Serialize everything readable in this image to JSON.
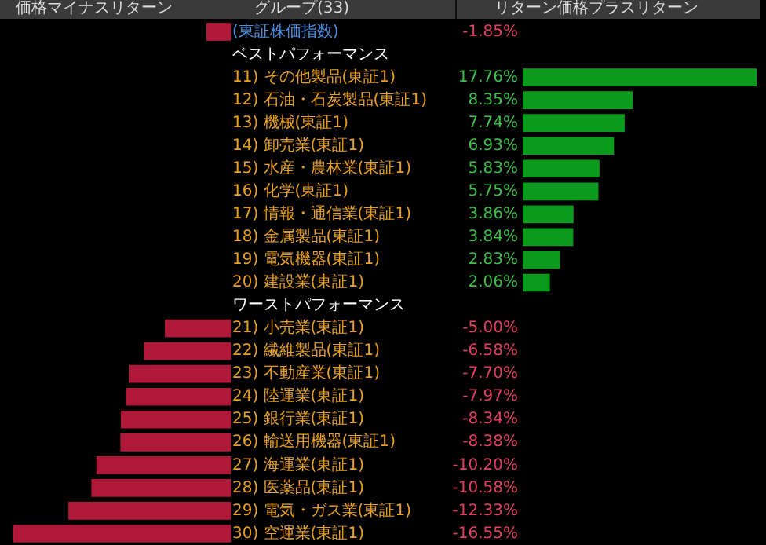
{
  "chart_data": [
    {
      "type": "bar",
      "orientation": "horizontal",
      "title": "価格マイナスリターン",
      "annotations": [
        "グループ(33)"
      ],
      "categories": [
        "(東証株価指数)",
        "ベストパフォーマンス",
        "11) その他製品(東証1)",
        "12) 石油・石炭製品(東証1)",
        "13) 機械(東証1)",
        "14) 卸売業(東証1)",
        "15) 水産・農林業(東証1)",
        "16) 化学(東証1)",
        "17) 情報・通信業(東証1)",
        "18) 金属製品(東証1)",
        "19) 電気機器(東証1)",
        "20) 建設業(東証1)",
        "ワーストパフォーマンス",
        "21) 小売業(東証1)",
        "22) 繊維製品(東証1)",
        "23) 不動産業(東証1)",
        "24) 陸運業(東証1)",
        "25) 銀行業(東証1)",
        "26) 輸送用機器(東証1)",
        "27) 海運業(東証1)",
        "28) 医薬品(東証1)",
        "29) 電気・ガス業(東証1)",
        "30) 空運業(東証1)"
      ],
      "values": [
        -1.85,
        null,
        null,
        null,
        null,
        null,
        null,
        null,
        null,
        null,
        null,
        null,
        null,
        -5.0,
        -6.58,
        -7.7,
        -7.97,
        -8.34,
        -8.38,
        -10.2,
        -10.58,
        -12.33,
        -16.55
      ],
      "value_labels": [
        "-1.85%",
        null,
        null,
        null,
        null,
        null,
        null,
        null,
        null,
        null,
        null,
        null,
        null,
        "-5.00%",
        "-6.58%",
        "-7.70%",
        "-7.97%",
        "-8.34%",
        "-8.38%",
        "-10.20%",
        "-10.58%",
        "-12.33%",
        "-16.55%"
      ],
      "color": "#b0183a",
      "legend": false
    },
    {
      "type": "bar",
      "orientation": "horizontal",
      "title": "リターン価格プラスリターン",
      "categories": [
        null,
        null,
        null,
        null,
        null,
        null,
        null,
        null,
        null,
        null,
        null,
        null,
        null,
        null,
        null,
        null,
        null,
        null,
        null,
        null,
        null,
        null,
        null
      ],
      "values": [
        null,
        null,
        17.76,
        8.35,
        7.74,
        6.93,
        5.83,
        5.75,
        3.86,
        3.84,
        2.83,
        2.06,
        null,
        null,
        null,
        null,
        null,
        null,
        null,
        null,
        null,
        null,
        null
      ],
      "value_labels": [
        null,
        null,
        "17.76%",
        "8.35%",
        "7.74%",
        "6.93%",
        "5.83%",
        "5.75%",
        "3.86%",
        "3.84%",
        "2.83%",
        "2.06%",
        null,
        null,
        null,
        null,
        null,
        null,
        null,
        null,
        null,
        null,
        null
      ],
      "color": "#0b9a1c",
      "legend": false
    }
  ]
}
